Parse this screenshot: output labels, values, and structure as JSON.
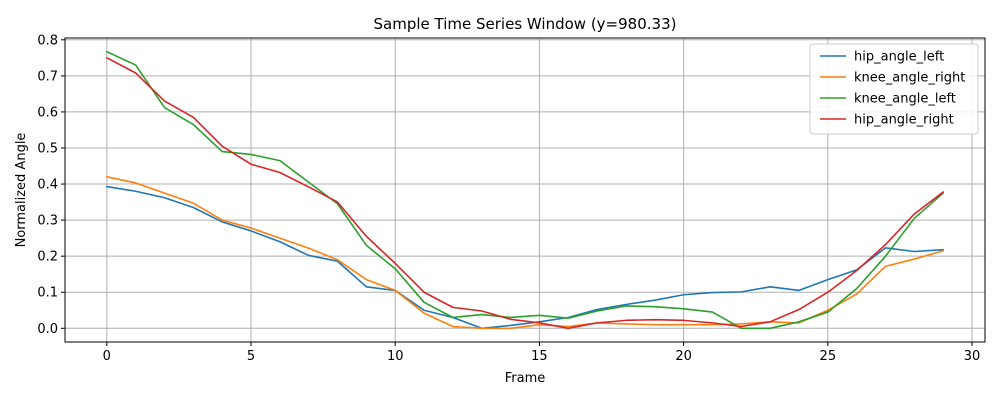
{
  "chart_data": {
    "type": "line",
    "title": "Sample Time Series Window (y=980.33)",
    "xlabel": "Frame",
    "ylabel": "Normalized Angle",
    "xlim": [
      -1.45,
      30.45
    ],
    "ylim": [
      -0.038,
      0.805
    ],
    "x_ticks": [
      0,
      5,
      10,
      15,
      20,
      25,
      30
    ],
    "x_tick_labels": [
      "0",
      "5",
      "10",
      "15",
      "20",
      "25",
      "30"
    ],
    "y_ticks": [
      0.0,
      0.1,
      0.2,
      0.3,
      0.4,
      0.5,
      0.6,
      0.7,
      0.8
    ],
    "y_tick_labels": [
      "0.0",
      "0.1",
      "0.2",
      "0.3",
      "0.4",
      "0.5",
      "0.6",
      "0.7",
      "0.8"
    ],
    "grid": true,
    "legend_position": "upper right",
    "x": [
      0,
      1,
      2,
      3,
      4,
      5,
      6,
      7,
      8,
      9,
      10,
      11,
      12,
      13,
      14,
      15,
      16,
      17,
      18,
      19,
      20,
      21,
      22,
      23,
      24,
      25,
      26,
      27,
      28,
      29
    ],
    "series": [
      {
        "name": "hip_angle_left",
        "color": "#1f77b4",
        "values": [
          0.393,
          0.38,
          0.362,
          0.335,
          0.295,
          0.27,
          0.24,
          0.202,
          0.186,
          0.115,
          0.105,
          0.05,
          0.03,
          0.0,
          0.008,
          0.018,
          0.03,
          0.052,
          0.066,
          0.078,
          0.093,
          0.099,
          0.101,
          0.115,
          0.105,
          0.135,
          0.162,
          0.223,
          0.213,
          0.218
        ]
      },
      {
        "name": "knee_angle_right",
        "color": "#ff7f0e",
        "values": [
          0.42,
          0.403,
          0.375,
          0.347,
          0.3,
          0.278,
          0.25,
          0.222,
          0.19,
          0.135,
          0.105,
          0.042,
          0.005,
          0.0,
          0.0,
          0.01,
          0.005,
          0.015,
          0.012,
          0.01,
          0.01,
          0.01,
          0.012,
          0.018,
          0.015,
          0.05,
          0.095,
          0.172,
          0.192,
          0.215
        ]
      },
      {
        "name": "knee_angle_left",
        "color": "#2ca02c",
        "values": [
          0.767,
          0.73,
          0.612,
          0.565,
          0.49,
          0.482,
          0.465,
          0.405,
          0.345,
          0.23,
          0.165,
          0.072,
          0.03,
          0.038,
          0.03,
          0.036,
          0.028,
          0.048,
          0.062,
          0.06,
          0.054,
          0.045,
          0.0,
          0.0,
          0.018,
          0.045,
          0.11,
          0.2,
          0.305,
          0.375
        ]
      },
      {
        "name": "hip_angle_right",
        "color": "#d62728",
        "values": [
          0.75,
          0.708,
          0.63,
          0.585,
          0.505,
          0.455,
          0.432,
          0.392,
          0.35,
          0.255,
          0.18,
          0.1,
          0.058,
          0.048,
          0.025,
          0.015,
          0.0,
          0.015,
          0.022,
          0.024,
          0.022,
          0.015,
          0.005,
          0.018,
          0.052,
          0.1,
          0.16,
          0.232,
          0.317,
          0.378
        ]
      }
    ]
  }
}
